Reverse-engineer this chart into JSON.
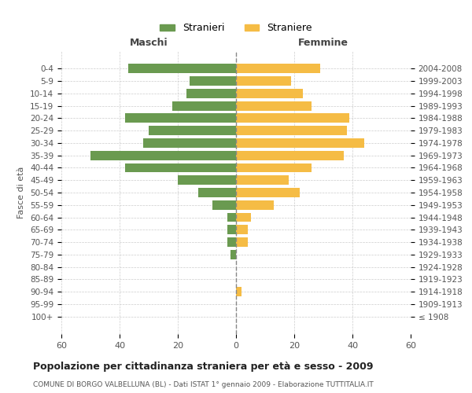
{
  "age_groups": [
    "100+",
    "95-99",
    "90-94",
    "85-89",
    "80-84",
    "75-79",
    "70-74",
    "65-69",
    "60-64",
    "55-59",
    "50-54",
    "45-49",
    "40-44",
    "35-39",
    "30-34",
    "25-29",
    "20-24",
    "15-19",
    "10-14",
    "5-9",
    "0-4"
  ],
  "birth_years": [
    "≤ 1908",
    "1909-1913",
    "1914-1918",
    "1919-1923",
    "1924-1928",
    "1929-1933",
    "1934-1938",
    "1939-1943",
    "1944-1948",
    "1949-1953",
    "1954-1958",
    "1959-1963",
    "1964-1968",
    "1969-1973",
    "1974-1978",
    "1979-1983",
    "1984-1988",
    "1989-1993",
    "1994-1998",
    "1999-2003",
    "2004-2008"
  ],
  "males": [
    0,
    0,
    0,
    0,
    0,
    2,
    3,
    3,
    3,
    8,
    13,
    20,
    38,
    50,
    32,
    30,
    38,
    22,
    17,
    16,
    37
  ],
  "females": [
    0,
    0,
    2,
    0,
    0,
    0,
    4,
    4,
    5,
    13,
    22,
    18,
    26,
    37,
    44,
    38,
    39,
    26,
    23,
    19,
    29
  ],
  "male_color": "#6a9a50",
  "female_color": "#f5bc45",
  "background_color": "#ffffff",
  "grid_color": "#cccccc",
  "title": "Popolazione per cittadinanza straniera per età e sesso - 2009",
  "subtitle": "COMUNE DI BORGO VALBELLUNA (BL) - Dati ISTAT 1° gennaio 2009 - Elaborazione TUTTITALIA.IT",
  "xlabel_left": "Maschi",
  "xlabel_right": "Femmine",
  "ylabel_left": "Fasce di età",
  "legend_male": "Stranieri",
  "legend_female": "Straniere",
  "xlim": 60,
  "xtick_labels": [
    "60",
    "40",
    "20",
    "0",
    "20",
    "40",
    "60"
  ]
}
